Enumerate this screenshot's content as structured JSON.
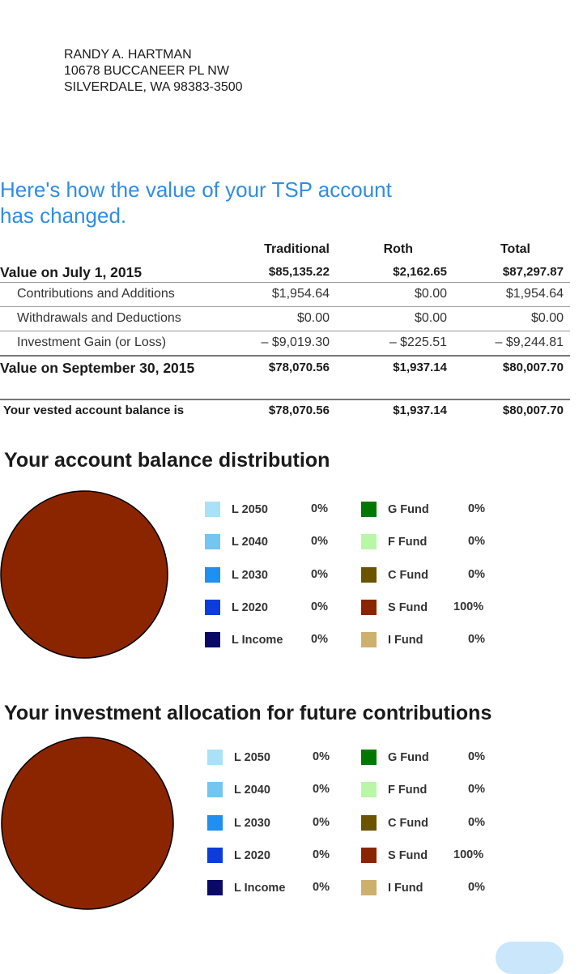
{
  "address": {
    "name": "RANDY A. HARTMAN",
    "street": "10678 BUCCANEER PL NW",
    "city": "SILVERDALE, WA 98383-3500"
  },
  "headline": [
    "Here's how the value of your TSP account",
    "has changed."
  ],
  "table": {
    "headers": [
      "Traditional",
      "Roth",
      "Total"
    ],
    "start": {
      "label": "Value on July 1, 2015",
      "values": [
        "$85,135.22",
        "$2,162.65",
        "$87,297.87"
      ]
    },
    "rows": [
      {
        "label": "Contributions and Additions",
        "values": [
          "$1,954.64",
          "$0.00",
          "$1,954.64"
        ]
      },
      {
        "label": "Withdrawals and Deductions",
        "values": [
          "$0.00",
          "$0.00",
          "$0.00"
        ]
      },
      {
        "label": "Investment Gain (or Loss)",
        "values": [
          "– $9,019.30",
          "– $225.51",
          "– $9,244.81"
        ]
      }
    ],
    "end": {
      "label": "Value on September 30, 2015",
      "values": [
        "$78,070.56",
        "$1,937.14",
        "$80,007.70"
      ]
    },
    "vested": {
      "label": "Your vested account balance is",
      "values": [
        "$78,070.56",
        "$1,937.14",
        "$80,007.70"
      ]
    }
  },
  "sections": [
    {
      "title": "Your account balance distribution",
      "chart_data": {
        "type": "pie",
        "title": "Your account balance distribution",
        "categories": [
          "L 2050",
          "L 2040",
          "L 2030",
          "L 2020",
          "L Income",
          "G Fund",
          "F Fund",
          "C Fund",
          "S Fund",
          "I Fund"
        ],
        "values": [
          0,
          0,
          0,
          0,
          0,
          0,
          0,
          0,
          100,
          0
        ],
        "colors": [
          "#a9e2f7",
          "#73c6ef",
          "#1f8ff0",
          "#0a3ddc",
          "#090966",
          "#007800",
          "#b8f7a6",
          "#6b5300",
          "#8b2500",
          "#cdb06e"
        ]
      },
      "left": [
        {
          "name": "L 2050",
          "pct": "0%",
          "color": "#a9e2f7"
        },
        {
          "name": "L 2040",
          "pct": "0%",
          "color": "#73c6ef"
        },
        {
          "name": "L 2030",
          "pct": "0%",
          "color": "#1f8ff0"
        },
        {
          "name": "L 2020",
          "pct": "0%",
          "color": "#0a3ddc"
        },
        {
          "name": "L Income",
          "pct": "0%",
          "color": "#090966"
        }
      ],
      "right": [
        {
          "name": "G Fund",
          "pct": "0%",
          "color": "#007800"
        },
        {
          "name": "F Fund",
          "pct": "0%",
          "color": "#b8f7a6"
        },
        {
          "name": "C Fund",
          "pct": "0%",
          "color": "#6b5300"
        },
        {
          "name": "S Fund",
          "pct": "100%",
          "color": "#8b2500"
        },
        {
          "name": "I Fund",
          "pct": "0%",
          "color": "#cdb06e"
        }
      ]
    },
    {
      "title": "Your investment allocation for future contributions",
      "chart_data": {
        "type": "pie",
        "title": "Your investment allocation for future contributions",
        "categories": [
          "L 2050",
          "L 2040",
          "L 2030",
          "L 2020",
          "L Income",
          "G Fund",
          "F Fund",
          "C Fund",
          "S Fund",
          "I Fund"
        ],
        "values": [
          0,
          0,
          0,
          0,
          0,
          0,
          0,
          0,
          100,
          0
        ],
        "colors": [
          "#a9e2f7",
          "#73c6ef",
          "#1f8ff0",
          "#0a3ddc",
          "#090966",
          "#007800",
          "#b8f7a6",
          "#6b5300",
          "#8b2500",
          "#cdb06e"
        ]
      },
      "left": [
        {
          "name": "L 2050",
          "pct": "0%",
          "color": "#a9e2f7"
        },
        {
          "name": "L 2040",
          "pct": "0%",
          "color": "#73c6ef"
        },
        {
          "name": "L 2030",
          "pct": "0%",
          "color": "#1f8ff0"
        },
        {
          "name": "L 2020",
          "pct": "0%",
          "color": "#0a3ddc"
        },
        {
          "name": "L Income",
          "pct": "0%",
          "color": "#090966"
        }
      ],
      "right": [
        {
          "name": "G Fund",
          "pct": "0%",
          "color": "#007800"
        },
        {
          "name": "F Fund",
          "pct": "0%",
          "color": "#b8f7a6"
        },
        {
          "name": "C Fund",
          "pct": "0%",
          "color": "#6b5300"
        },
        {
          "name": "S Fund",
          "pct": "100%",
          "color": "#8b2500"
        },
        {
          "name": "I Fund",
          "pct": "0%",
          "color": "#cdb06e"
        }
      ]
    }
  ]
}
